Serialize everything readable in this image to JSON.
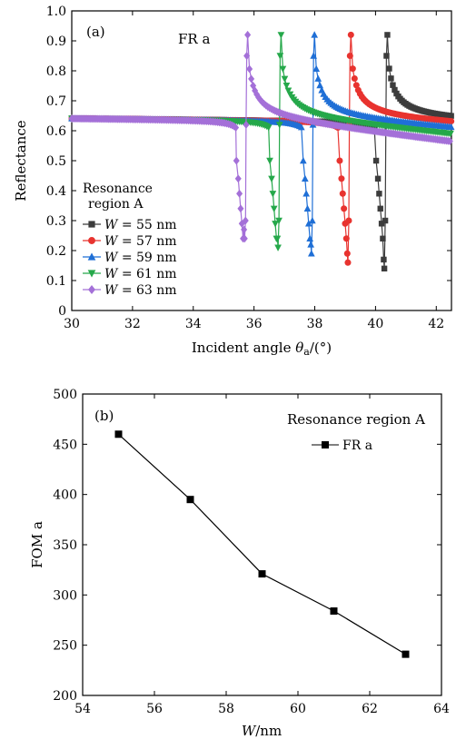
{
  "chart_data": [
    {
      "type": "scatter",
      "panel": "(a)",
      "annotation": "FR a",
      "xlabel": "Incident angle θa/(°)",
      "xlabel_main": "Incident angle ",
      "xlabel_sym": "θ",
      "xlabel_sub": "a",
      "xlabel_tail": "/(°)",
      "ylabel": "Reflectance",
      "xlim": [
        30,
        42.5
      ],
      "ylim": [
        0,
        1.0
      ],
      "xticks": [
        "30",
        "32",
        "34",
        "36",
        "38",
        "40",
        "42"
      ],
      "xtick_values": [
        30,
        32,
        34,
        36,
        38,
        40,
        42
      ],
      "yticks": [
        "0",
        "0.1",
        "0.2",
        "0.3",
        "0.4",
        "0.5",
        "0.6",
        "0.7",
        "0.8",
        "0.9",
        "1.0"
      ],
      "ytick_values": [
        0,
        0.1,
        0.2,
        0.3,
        0.4,
        0.5,
        0.6,
        0.7,
        0.8,
        0.9,
        1.0
      ],
      "legend_title": [
        "Resonance",
        "region A"
      ],
      "legend_location": "lower-left",
      "series": [
        {
          "name": "W = 55 nm",
          "var": "W",
          "rest": " = 55 nm",
          "color": "#3c3c3c",
          "marker": "square",
          "resonance": 40.3,
          "dip": 0.14
        },
        {
          "name": "W = 57 nm",
          "var": "W",
          "rest": " = 57 nm",
          "color": "#e8332f",
          "marker": "circle",
          "resonance": 39.1,
          "dip": 0.16
        },
        {
          "name": "W = 59 nm",
          "var": "W",
          "rest": " = 59 nm",
          "color": "#1f6fd6",
          "marker": "triangle-up",
          "resonance": 37.9,
          "dip": 0.19
        },
        {
          "name": "W = 61 nm",
          "var": "W",
          "rest": " = 61 nm",
          "color": "#25a84a",
          "marker": "triangle-down",
          "resonance": 36.8,
          "dip": 0.21
        },
        {
          "name": "W = 63 nm",
          "var": "W",
          "rest": " = 63 nm",
          "color": "#a470d8",
          "marker": "diamond",
          "resonance": 35.7,
          "dip": 0.24
        }
      ]
    },
    {
      "type": "line",
      "panel": "(b)",
      "annotation": "Resonance region A",
      "xlabel": "W/nm",
      "xlabel_var": "W",
      "xlabel_tail": "/nm",
      "ylabel": "FOM a",
      "xlim": [
        54,
        64
      ],
      "ylim": [
        200,
        500
      ],
      "xticks": [
        "54",
        "56",
        "58",
        "60",
        "62",
        "64"
      ],
      "xtick_values": [
        54,
        56,
        58,
        60,
        62,
        64
      ],
      "yticks": [
        "200",
        "250",
        "300",
        "350",
        "400",
        "450",
        "500"
      ],
      "ytick_values": [
        200,
        250,
        300,
        350,
        400,
        450,
        500
      ],
      "legend_location": "top-right",
      "series": [
        {
          "name": "FR a",
          "color": "#000000",
          "marker": "square",
          "x": [
            55,
            57,
            59,
            61,
            63
          ],
          "y": [
            460,
            395,
            321,
            284,
            241
          ]
        }
      ]
    }
  ]
}
